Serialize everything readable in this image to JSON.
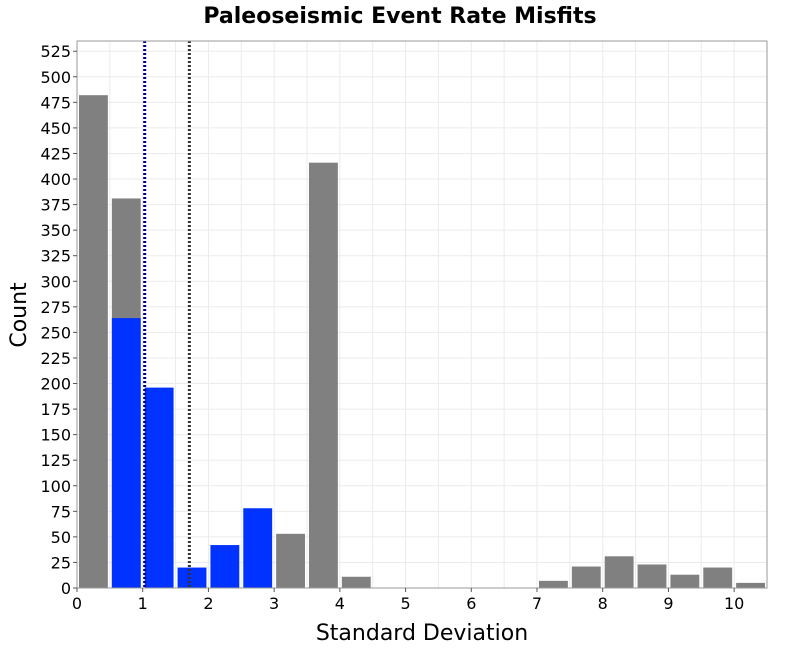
{
  "chart_data": {
    "type": "bar",
    "title": "Paleoseismic Event Rate Misfits",
    "xlabel": "Standard Deviation",
    "ylabel": "Count",
    "xlim": [
      0,
      10.5
    ],
    "ylim": [
      0,
      535
    ],
    "xticks": [
      "0",
      "1",
      "2",
      "3",
      "4",
      "5",
      "6",
      "7",
      "8",
      "9",
      "10"
    ],
    "yticks": [
      "0",
      "25",
      "50",
      "75",
      "100",
      "125",
      "150",
      "175",
      "200",
      "225",
      "250",
      "275",
      "300",
      "325",
      "350",
      "375",
      "400",
      "425",
      "450",
      "475",
      "500",
      "525"
    ],
    "bin_width": 0.5,
    "grid": true,
    "series": [
      {
        "color": "#808080",
        "bins": [
          {
            "x": 0.25,
            "value": 482
          },
          {
            "x": 0.75,
            "value": 381
          },
          {
            "x": 3.25,
            "value": 53
          },
          {
            "x": 3.75,
            "value": 416
          },
          {
            "x": 4.25,
            "value": 11
          },
          {
            "x": 7.25,
            "value": 7
          },
          {
            "x": 7.75,
            "value": 21
          },
          {
            "x": 8.25,
            "value": 31
          },
          {
            "x": 8.75,
            "value": 23
          },
          {
            "x": 9.25,
            "value": 13
          },
          {
            "x": 9.75,
            "value": 20
          },
          {
            "x": 10.25,
            "value": 5
          }
        ]
      },
      {
        "color": "#0033ff",
        "bins": [
          {
            "x": 0.75,
            "value": 264
          },
          {
            "x": 1.25,
            "value": 196
          },
          {
            "x": 1.75,
            "value": 20
          },
          {
            "x": 2.25,
            "value": 42
          },
          {
            "x": 2.75,
            "value": 78
          }
        ]
      }
    ],
    "reference_lines": [
      {
        "x": 1.03,
        "color": "#000080",
        "style": "dotted"
      },
      {
        "x": 1.71,
        "color": "#333333",
        "style": "dotted"
      }
    ]
  }
}
